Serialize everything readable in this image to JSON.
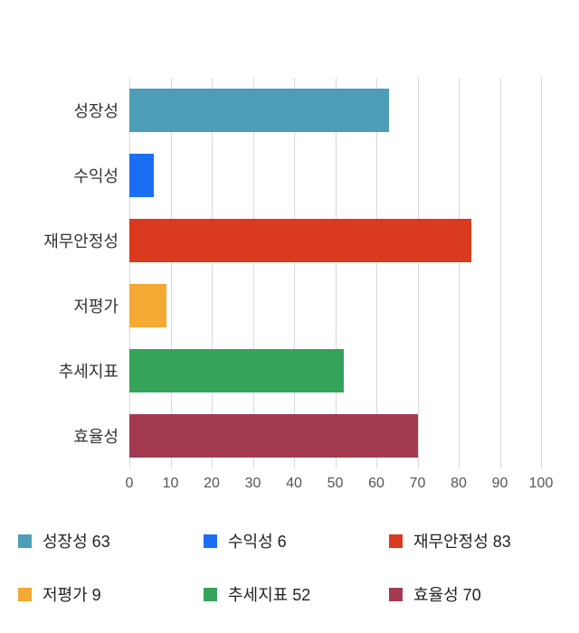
{
  "chart_data": {
    "type": "bar",
    "orientation": "horizontal",
    "title": "",
    "xlabel": "",
    "ylabel": "",
    "categories": [
      "성장성",
      "수익성",
      "재무안정성",
      "저평가",
      "추세지표",
      "효율성"
    ],
    "values": [
      63,
      6,
      83,
      9,
      52,
      70
    ],
    "colors": [
      "#4d9cb8",
      "#1b6ef3",
      "#da3a1e",
      "#f3a933",
      "#35a35a",
      "#a23b52"
    ],
    "xlim": [
      0,
      100
    ],
    "xticks": [
      0,
      10,
      20,
      30,
      40,
      50,
      60,
      70,
      80,
      90,
      100
    ],
    "grid": true,
    "gridline_color": "#d9d9d9",
    "legend_position": "bottom",
    "legend": [
      {
        "label": "성장성 63"
      },
      {
        "label": "수익성 6"
      },
      {
        "label": "재무안정성 83"
      },
      {
        "label": "저평가 9"
      },
      {
        "label": "추세지표 52"
      },
      {
        "label": "효율성 70"
      }
    ]
  }
}
